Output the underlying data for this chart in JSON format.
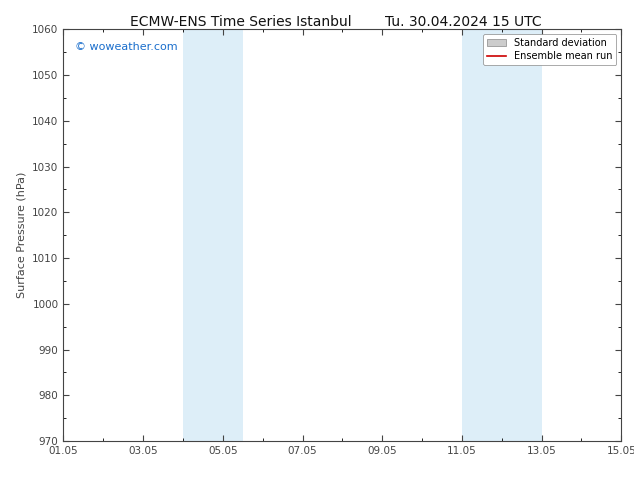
{
  "title": "ECMW-ENS Time Series Istanbul",
  "title_right": "Tu. 30.04.2024 15 UTC",
  "ylabel": "Surface Pressure (hPa)",
  "xlabel_ticks": [
    "01.05",
    "03.05",
    "05.05",
    "07.05",
    "09.05",
    "11.05",
    "13.05",
    "15.05"
  ],
  "xlabel_tick_positions": [
    0,
    2,
    4,
    6,
    8,
    10,
    12,
    14
  ],
  "ylim": [
    970,
    1060
  ],
  "xlim": [
    0,
    14
  ],
  "yticks": [
    970,
    980,
    990,
    1000,
    1010,
    1020,
    1030,
    1040,
    1050,
    1060
  ],
  "shaded_bands": [
    {
      "xmin": 3.0,
      "xmax": 4.5,
      "color": "#ddeef8"
    },
    {
      "xmin": 10.0,
      "xmax": 12.0,
      "color": "#ddeef8"
    }
  ],
  "watermark_text": "© woweather.com",
  "watermark_color": "#1a6ecc",
  "legend_std_label": "Standard deviation",
  "legend_mean_label": "Ensemble mean run",
  "legend_std_color": "#cccccc",
  "legend_mean_color": "#cc0000",
  "bg_color": "#ffffff",
  "spine_color": "#444444",
  "tick_color": "#444444",
  "title_fontsize": 10,
  "label_fontsize": 8,
  "tick_fontsize": 7.5,
  "watermark_fontsize": 8
}
